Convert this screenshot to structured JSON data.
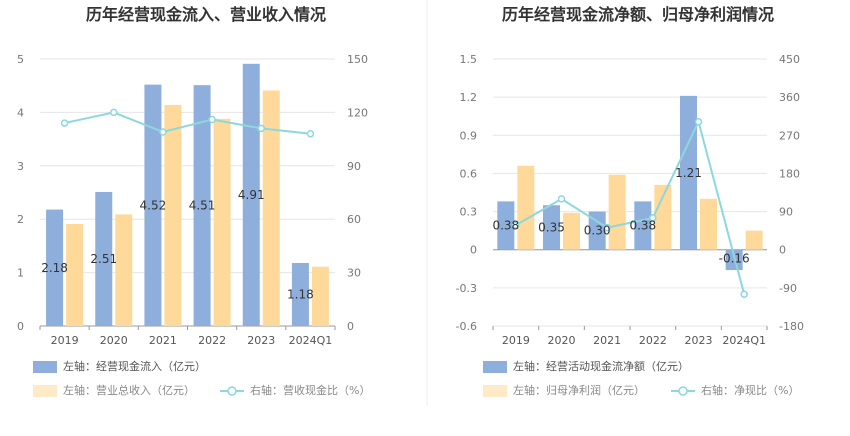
{
  "chart_data": [
    {
      "type": "bar",
      "title": "历年经营现金流入、营业收入情况",
      "categories": [
        "2019",
        "2020",
        "2021",
        "2022",
        "2023",
        "2024Q1"
      ],
      "y_left_ticks": [
        "5",
        "4",
        "3",
        "2",
        "1",
        "0"
      ],
      "y_right_ticks": [
        "150",
        "120",
        "90",
        "60",
        "30",
        "0"
      ],
      "ylim_left": [
        0,
        5
      ],
      "ylim_right": [
        0,
        150
      ],
      "series": [
        {
          "name": "左轴：经营现金流入（亿元）",
          "axis": "left",
          "kind": "bar",
          "color": "#8eaedc",
          "values": [
            2.18,
            2.51,
            4.52,
            4.51,
            4.91,
            1.18
          ],
          "labels": [
            "2.18",
            "2.51",
            "4.52",
            "4.51",
            "4.91",
            "1.18"
          ]
        },
        {
          "name": "左轴：营业总收入（亿元）",
          "axis": "left",
          "kind": "bar",
          "color": "#ffd99a",
          "values": [
            1.91,
            2.09,
            4.14,
            3.88,
            4.41,
            1.11
          ]
        },
        {
          "name": "右轴：营收现金比（%）",
          "axis": "right",
          "kind": "line",
          "color": "#8dd7de",
          "values": [
            114,
            120,
            109,
            116,
            111,
            108
          ]
        }
      ]
    },
    {
      "type": "bar",
      "title": "历年经营现金流净额、归母净利润情况",
      "categories": [
        "2019",
        "2020",
        "2021",
        "2022",
        "2023",
        "2024Q1"
      ],
      "y_left_ticks": [
        "1.5",
        "1.2",
        "0.9",
        "0.6",
        "0.3",
        "0",
        "-0.3",
        "-0.6"
      ],
      "y_right_ticks": [
        "450",
        "360",
        "270",
        "180",
        "90",
        "0",
        "-90",
        "-180"
      ],
      "ylim_left": [
        -0.6,
        1.5
      ],
      "ylim_right": [
        -180,
        450
      ],
      "series": [
        {
          "name": "左轴：经营活动现金流净额（亿元）",
          "axis": "left",
          "kind": "bar",
          "color": "#8eaedc",
          "values": [
            0.38,
            0.35,
            0.3,
            0.38,
            1.21,
            -0.16
          ],
          "labels": [
            "0.38",
            "0.35",
            "0.30",
            "0.38",
            "1.21",
            "-0.16"
          ]
        },
        {
          "name": "左轴：归母净利润（亿元）",
          "axis": "left",
          "kind": "bar",
          "color": "#ffd99a",
          "values": [
            0.66,
            0.29,
            0.59,
            0.51,
            0.4,
            0.15
          ]
        },
        {
          "name": "右轴：净现比（%）",
          "axis": "right",
          "kind": "line",
          "color": "#8dd7de",
          "values": [
            58,
            120,
            52,
            75,
            302,
            -105
          ]
        }
      ]
    }
  ]
}
